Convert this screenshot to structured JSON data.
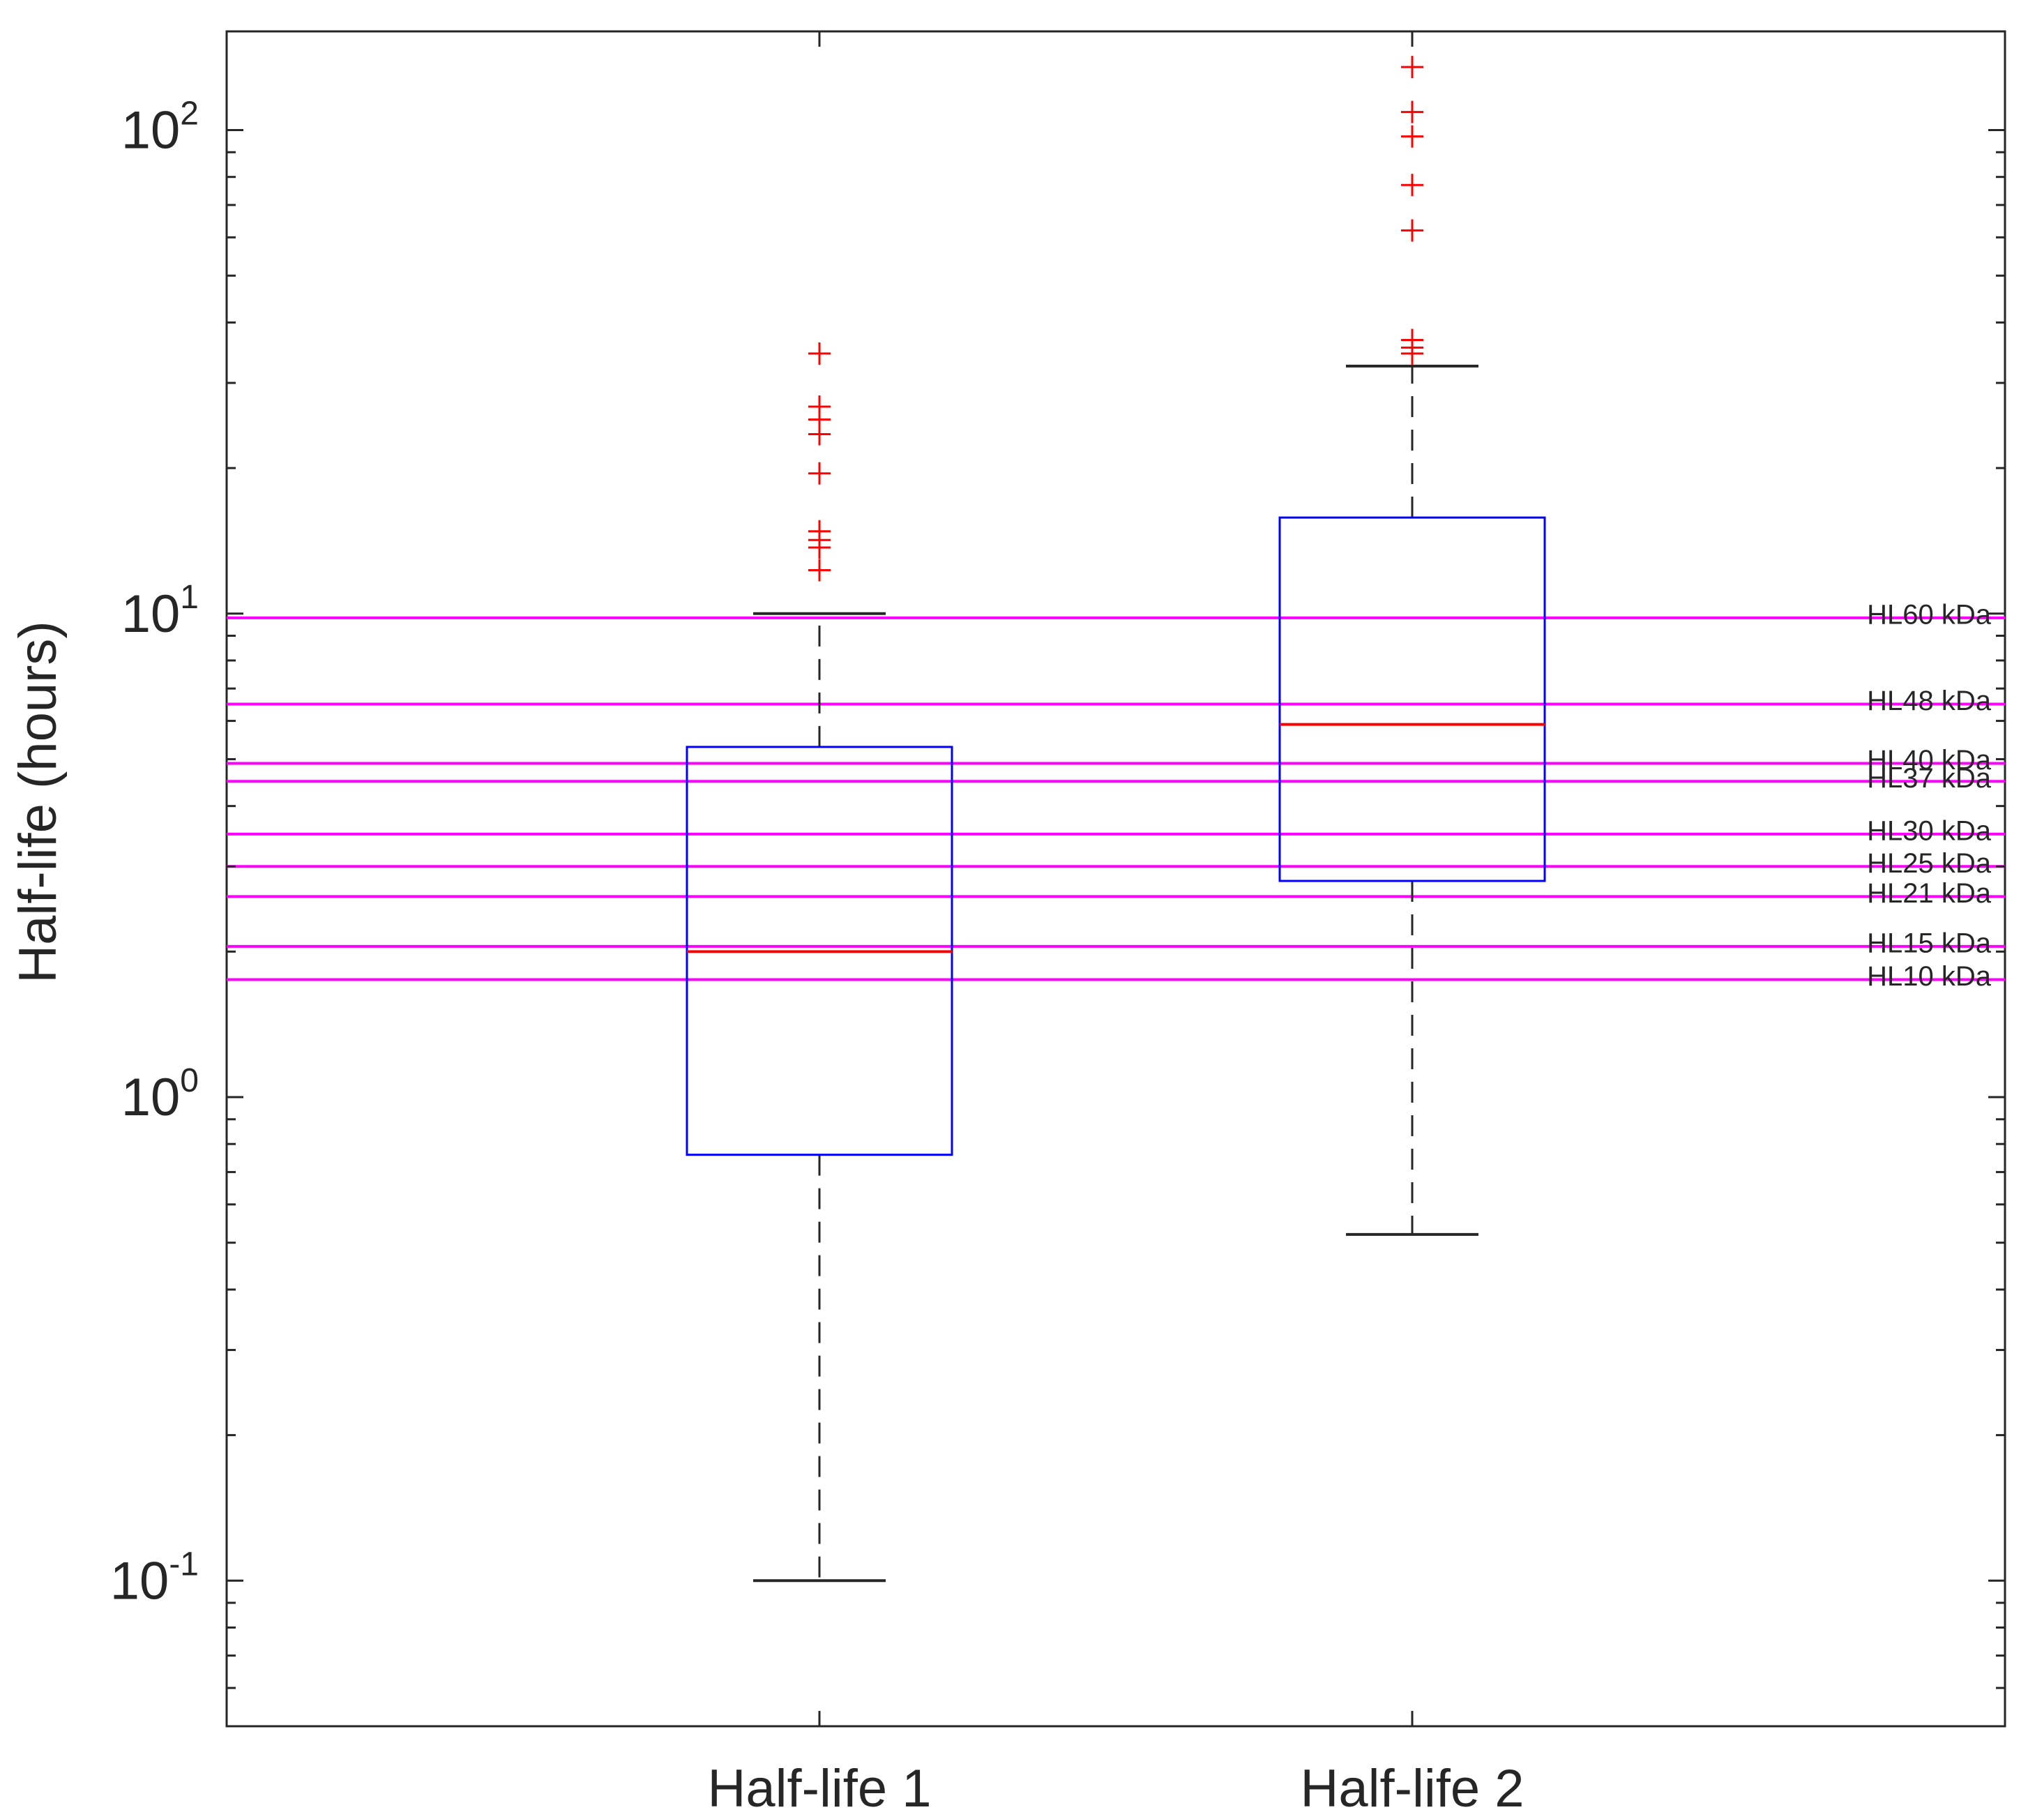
{
  "chart_data": {
    "type": "box",
    "ylabel": "Half-life (hours)",
    "xlabel": "",
    "yscale": "log",
    "ylim": [
      0.05,
      160
    ],
    "ytick_labels": [
      {
        "value": 0.1,
        "base": "10",
        "exp": "-1"
      },
      {
        "value": 1,
        "base": "10",
        "exp": "0"
      },
      {
        "value": 10,
        "base": "10",
        "exp": "1"
      },
      {
        "value": 100,
        "base": "10",
        "exp": "2"
      }
    ],
    "categories": [
      "Half-life 1",
      "Half-life 2"
    ],
    "boxes": [
      {
        "name": "Half-life 1",
        "whisker_low": 0.1,
        "q1": 0.76,
        "median": 2.0,
        "q3": 5.3,
        "whisker_high": 10.0,
        "outliers": [
          12.3,
          13.7,
          14.2,
          14.8,
          19.5,
          23.5,
          25.2,
          26.8,
          34.5
        ]
      },
      {
        "name": "Half-life 2",
        "whisker_low": 0.52,
        "q1": 2.8,
        "median": 5.9,
        "q3": 15.8,
        "whisker_high": 32.5,
        "outliers": [
          34.5,
          35.5,
          36.8,
          62,
          77,
          97,
          109,
          135
        ]
      }
    ],
    "reference_lines": [
      {
        "label": "HL60 kDa",
        "value": 9.8
      },
      {
        "label": "HL48 kDa",
        "value": 6.5
      },
      {
        "label": "HL40 kDa",
        "value": 4.9
      },
      {
        "label": "HL37 kDa",
        "value": 4.5
      },
      {
        "label": "HL30 kDa",
        "value": 3.5
      },
      {
        "label": "HL25 kDa",
        "value": 3.0
      },
      {
        "label": "HL21 kDa",
        "value": 2.6
      },
      {
        "label": "HL15 kDa",
        "value": 2.05
      },
      {
        "label": "HL10 kDa",
        "value": 1.75
      }
    ],
    "colors": {
      "box": "#0000ff",
      "median": "#ff0000",
      "outlier": "#ff0000",
      "whisker": "#262626",
      "reference": "#ff00ff",
      "axis": "#262626"
    },
    "grid": false,
    "legend": "none"
  }
}
